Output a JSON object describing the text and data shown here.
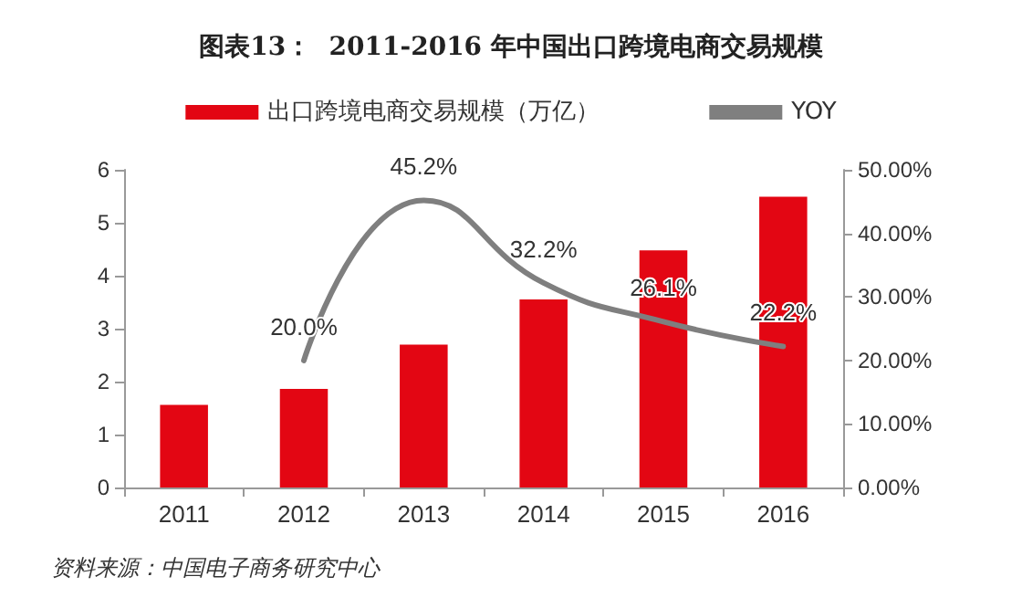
{
  "chart_data": {
    "type": "bar",
    "title": "图表13：  2011-2016 年中国出口跨境电商交易规模",
    "categories": [
      "2011",
      "2012",
      "2013",
      "2014",
      "2015",
      "2016"
    ],
    "series": [
      {
        "name": "出口跨境电商交易规模（万亿）",
        "color": "#e30613",
        "values": [
          1.56,
          1.86,
          2.7,
          3.55,
          4.48,
          5.49
        ]
      },
      {
        "name": "YOY",
        "type": "line",
        "axis": "y2",
        "color": "#7f7f7f",
        "values": [
          null,
          20.0,
          45.2,
          32.2,
          26.1,
          22.2
        ],
        "value_labels": [
          null,
          "20.0%",
          "45.2%",
          "32.2%",
          "26.1%",
          "22.2%"
        ]
      }
    ],
    "ylim": [
      0,
      6
    ],
    "yticks": [
      0,
      1,
      2,
      3,
      4,
      5,
      6
    ],
    "y2lim": [
      0,
      50
    ],
    "y2ticks": [
      {
        "value": 0,
        "label": "0.00%"
      },
      {
        "value": 10,
        "label": "10.00%"
      },
      {
        "value": 20,
        "label": "20.00%"
      },
      {
        "value": 30,
        "label": "30.00%"
      },
      {
        "value": 40,
        "label": "40.00%"
      },
      {
        "value": 50,
        "label": "50.00%"
      }
    ],
    "legend": "top",
    "grid": false,
    "marker": "none",
    "annotations": [
      "资料来源：中国电子商务研究中心"
    ]
  }
}
